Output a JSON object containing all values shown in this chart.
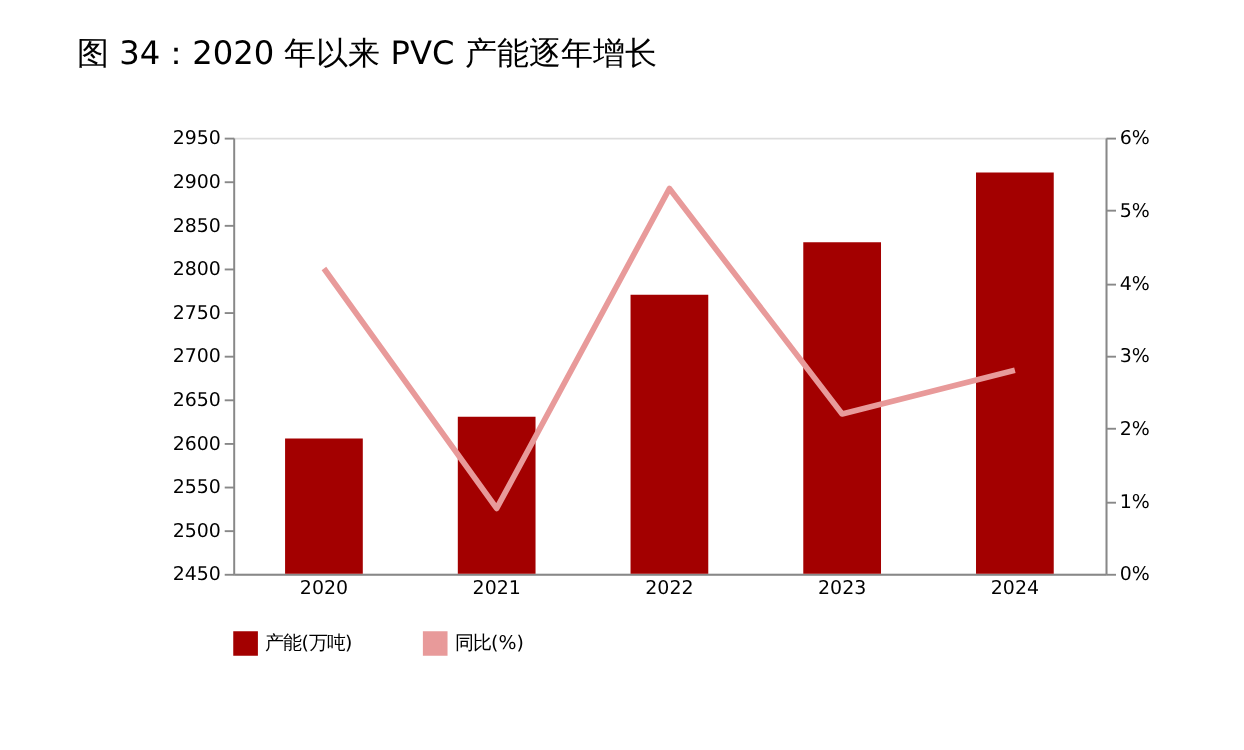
{
  "chart_data": {
    "type": "bar",
    "title": "图 34：2020 年以来 PVC 产能逐年增长",
    "categories": [
      "2020",
      "2021",
      "2022",
      "2023",
      "2024"
    ],
    "series": [
      {
        "name": "产能(万吨)",
        "color": "#a30000",
        "values": [
          2605,
          2630,
          2770,
          2830,
          2910
        ]
      },
      {
        "name": "同比(%)",
        "type": "line",
        "color": "#e89a9a",
        "axis": "y2",
        "values": [
          4.2,
          0.9,
          5.3,
          2.2,
          2.8
        ]
      }
    ],
    "ylim": [
      2450,
      2950
    ],
    "yticks": [
      2450,
      2500,
      2550,
      2600,
      2650,
      2700,
      2750,
      2800,
      2850,
      2900,
      2950
    ],
    "y2lim": [
      0,
      6
    ],
    "y2ticks": [
      {
        "value": 0,
        "label": "0%"
      },
      {
        "value": 1,
        "label": "1%"
      },
      {
        "value": 2,
        "label": "2%"
      },
      {
        "value": 3,
        "label": "3%"
      },
      {
        "value": 4,
        "label": "4%"
      },
      {
        "value": 5,
        "label": "5%"
      },
      {
        "value": 6,
        "label": "6%"
      }
    ],
    "grid": false,
    "legend": "bottom",
    "marker": "none",
    "line_style": "solid"
  }
}
